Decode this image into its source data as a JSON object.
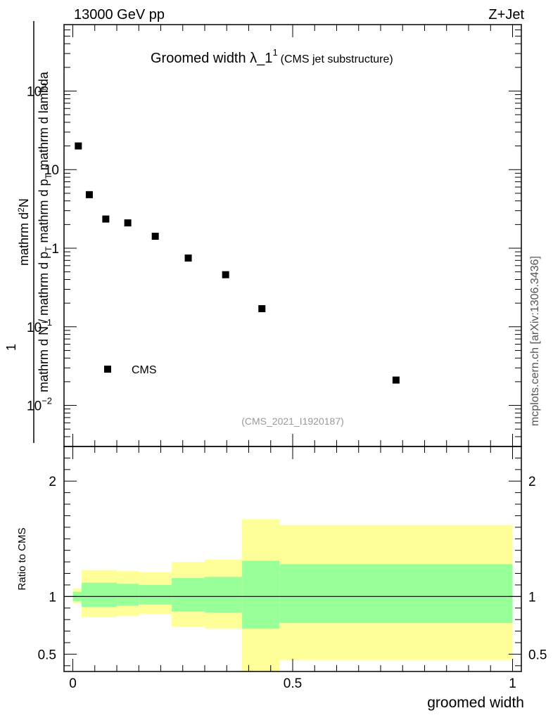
{
  "header": {
    "left": "13000 GeV pp",
    "right": "Z+Jet",
    "side_label": "mcplots.cern.ch [arXiv:1306.3436]",
    "analysis_id": "(CMS_2021_I1920187)"
  },
  "chart_data": [
    {
      "type": "scatter",
      "title_main": "Groomed width",
      "title_sub": "(CMS jet substructure)",
      "ylabel_numerator": "mathrm d",
      "ylabel_denominator": "mathrm d N / mathrm d p",
      "yscale": "log",
      "ylim": [
        0.003,
        700
      ],
      "xlim": [
        -0.02,
        1.02
      ],
      "y_ticks": [
        {
          "value": 0.01,
          "base": "10",
          "exp": "−2"
        },
        {
          "value": 0.1,
          "base": "10",
          "exp": "−1"
        },
        {
          "value": 1,
          "base": "1",
          "exp": ""
        },
        {
          "value": 10,
          "base": "10",
          "exp": ""
        },
        {
          "value": 100,
          "base": "10",
          "exp": "2"
        }
      ],
      "legend": {
        "label": "CMS",
        "placement": "bottom-left"
      },
      "series": [
        {
          "name": "CMS",
          "x": [
            0.0125,
            0.0375,
            0.075,
            0.125,
            0.1875,
            0.2625,
            0.3475,
            0.43,
            0.735
          ],
          "y": [
            20,
            4.8,
            2.35,
            2.1,
            1.42,
            0.75,
            0.46,
            0.17,
            0.021
          ]
        }
      ]
    },
    {
      "type": "area",
      "ylabel": "Ratio to CMS",
      "xlabel": "groomed width",
      "ylim": [
        0.35,
        2.3
      ],
      "xlim": [
        -0.02,
        1.02
      ],
      "y_ticks": [
        0.5,
        1,
        2
      ],
      "x_ticks": [
        0,
        0.5,
        1
      ],
      "x_tick_labels": [
        "0",
        "0.5",
        "1"
      ],
      "y_tick_labels": [
        "0.5",
        "1",
        "2"
      ],
      "reference_line": 1.0,
      "bins": [
        {
          "x0": 0.0,
          "x1": 0.02,
          "y_lo": 0.94,
          "y_hi": 1.07,
          "g_lo": 0.96,
          "g_hi": 1.04
        },
        {
          "x0": 0.02,
          "x1": 0.1,
          "y_lo": 0.82,
          "y_hi": 1.23,
          "g_lo": 0.91,
          "g_hi": 1.12
        },
        {
          "x0": 0.1,
          "x1": 0.15,
          "y_lo": 0.83,
          "y_hi": 1.22,
          "g_lo": 0.92,
          "g_hi": 1.11
        },
        {
          "x0": 0.15,
          "x1": 0.225,
          "y_lo": 0.85,
          "y_hi": 1.21,
          "g_lo": 0.93,
          "g_hi": 1.1
        },
        {
          "x0": 0.225,
          "x1": 0.3,
          "y_lo": 0.74,
          "y_hi": 1.3,
          "g_lo": 0.87,
          "g_hi": 1.16
        },
        {
          "x0": 0.3,
          "x1": 0.385,
          "y_lo": 0.72,
          "y_hi": 1.32,
          "g_lo": 0.86,
          "g_hi": 1.17
        },
        {
          "x0": 0.385,
          "x1": 0.47,
          "y_lo": 0.35,
          "y_hi": 1.67,
          "g_lo": 0.72,
          "g_hi": 1.31
        },
        {
          "x0": 0.47,
          "x1": 1.0,
          "y_lo": 0.45,
          "y_hi": 1.62,
          "g_lo": 0.77,
          "g_hi": 1.28
        }
      ],
      "colors": {
        "outer": "#ffff99",
        "inner": "#99ff99",
        "line": "#000000"
      }
    }
  ]
}
